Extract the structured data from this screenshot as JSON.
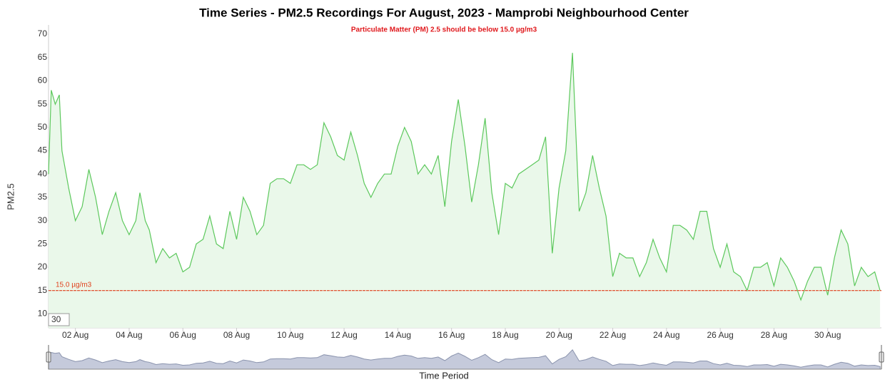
{
  "chart_data": {
    "type": "line",
    "title": "Time Series - PM2.5 Recordings For August, 2023 - Mamprobi Neighbourhood Center",
    "subtitle": "Particulate Matter (PM) 2.5 should be below 15.0 µg/m3",
    "y_label": "PM2.5",
    "x_label": "Time Period",
    "range_input": "30",
    "x": [
      1.0,
      1.1,
      1.25,
      1.4,
      1.5,
      1.75,
      2.0,
      2.25,
      2.5,
      2.75,
      3.0,
      3.25,
      3.5,
      3.75,
      4.0,
      4.25,
      4.4,
      4.6,
      4.75,
      5.0,
      5.25,
      5.5,
      5.75,
      6.0,
      6.25,
      6.5,
      6.75,
      7.0,
      7.25,
      7.5,
      7.75,
      8.0,
      8.25,
      8.5,
      8.75,
      9.0,
      9.25,
      9.5,
      9.75,
      10.0,
      10.25,
      10.5,
      10.75,
      11.0,
      11.25,
      11.5,
      11.75,
      12.0,
      12.25,
      12.5,
      12.75,
      13.0,
      13.25,
      13.5,
      13.75,
      14.0,
      14.25,
      14.5,
      14.75,
      15.0,
      15.25,
      15.5,
      15.75,
      16.0,
      16.25,
      16.5,
      16.75,
      17.0,
      17.25,
      17.5,
      17.75,
      18.0,
      18.25,
      18.5,
      18.75,
      19.0,
      19.25,
      19.5,
      19.75,
      20.0,
      20.25,
      20.5,
      20.75,
      21.0,
      21.25,
      21.5,
      21.75,
      22.0,
      22.25,
      22.5,
      22.75,
      23.0,
      23.25,
      23.5,
      23.75,
      24.0,
      24.25,
      24.5,
      24.75,
      25.0,
      25.25,
      25.5,
      25.75,
      26.0,
      26.25,
      26.5,
      26.75,
      27.0,
      27.25,
      27.5,
      27.75,
      28.0,
      28.25,
      28.5,
      28.75,
      29.0,
      29.25,
      29.5,
      29.75,
      30.0,
      30.25,
      30.5,
      30.75,
      31.0,
      31.25,
      31.5,
      31.75,
      31.95
    ],
    "values": [
      40,
      58,
      55,
      57,
      45,
      37,
      30,
      33,
      41,
      35,
      27,
      32,
      36,
      30,
      27,
      30,
      36,
      30,
      28,
      21,
      24,
      22,
      23,
      19,
      20,
      25,
      26,
      31,
      25,
      24,
      32,
      26,
      35,
      32,
      27,
      29,
      38,
      39,
      39,
      38,
      42,
      42,
      41,
      42,
      51,
      48,
      44,
      43,
      49,
      44,
      38,
      35,
      38,
      40,
      40,
      46,
      50,
      47,
      40,
      42,
      40,
      44,
      33,
      47,
      56,
      46,
      34,
      42,
      52,
      36,
      27,
      38,
      37,
      40,
      41,
      42,
      43,
      48,
      23,
      37,
      45,
      66,
      32,
      36,
      44,
      37,
      31,
      18,
      23,
      22,
      22,
      18,
      21,
      26,
      22,
      19,
      29,
      29,
      28,
      26,
      32,
      32,
      24,
      20,
      25,
      19,
      18,
      15,
      20,
      20,
      21,
      16,
      22,
      20,
      17,
      13,
      17,
      20,
      20,
      14,
      22,
      28,
      25,
      16,
      20,
      18,
      19,
      15
    ],
    "color": "#5cc85c",
    "fill": "#eaf8ea",
    "xlim": [
      1,
      32
    ],
    "ylim": [
      7,
      72
    ],
    "yticks": [
      10,
      15,
      20,
      25,
      30,
      35,
      40,
      45,
      50,
      55,
      60,
      65,
      70
    ],
    "xticks": [
      {
        "value": 2,
        "label": "02 Aug"
      },
      {
        "value": 4,
        "label": "04 Aug"
      },
      {
        "value": 6,
        "label": "06 Aug"
      },
      {
        "value": 8,
        "label": "08 Aug"
      },
      {
        "value": 10,
        "label": "10 Aug"
      },
      {
        "value": 12,
        "label": "12 Aug"
      },
      {
        "value": 14,
        "label": "14 Aug"
      },
      {
        "value": 16,
        "label": "16 Aug"
      },
      {
        "value": 18,
        "label": "18 Aug"
      },
      {
        "value": 20,
        "label": "20 Aug"
      },
      {
        "value": 22,
        "label": "22 Aug"
      },
      {
        "value": 24,
        "label": "24 Aug"
      },
      {
        "value": 26,
        "label": "26 Aug"
      },
      {
        "value": 28,
        "label": "28 Aug"
      },
      {
        "value": 30,
        "label": "30 Aug"
      }
    ],
    "threshold": {
      "value": 15,
      "label": "15.0 µg/m3",
      "color": "#e0401c"
    }
  }
}
